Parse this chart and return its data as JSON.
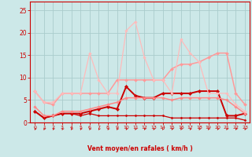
{
  "xlabel": "Vent moyen/en rafales ( km/h )",
  "background_color": "#cce8e8",
  "grid_color": "#aacccc",
  "ylim": [
    0,
    27
  ],
  "yticks": [
    0,
    5,
    10,
    15,
    20,
    25
  ],
  "xlim": [
    -0.5,
    23.5
  ],
  "xticks": [
    0,
    1,
    2,
    3,
    4,
    5,
    6,
    7,
    8,
    9,
    10,
    11,
    12,
    13,
    14,
    15,
    16,
    17,
    18,
    19,
    20,
    21,
    22,
    23
  ],
  "series": [
    {
      "x": [
        0,
        1,
        2,
        3,
        4,
        5,
        6,
        7,
        8,
        9,
        10,
        11,
        12,
        13,
        14,
        15,
        16,
        17,
        18,
        19,
        20,
        21,
        22,
        23
      ],
      "y": [
        2.5,
        1.0,
        1.5,
        2.0,
        2.0,
        1.5,
        2.0,
        1.5,
        1.5,
        1.5,
        1.5,
        1.5,
        1.5,
        1.5,
        1.5,
        1.0,
        1.0,
        1.0,
        1.0,
        1.0,
        1.0,
        1.0,
        1.0,
        0.5
      ],
      "color": "#cc0000",
      "lw": 0.9,
      "marker": "D",
      "ms": 1.5
    },
    {
      "x": [
        0,
        1,
        2,
        3,
        4,
        5,
        6,
        7,
        8,
        9,
        10,
        11,
        12,
        13,
        14,
        15,
        16,
        17,
        18,
        19,
        20,
        21,
        22,
        23
      ],
      "y": [
        2.5,
        1.0,
        1.5,
        2.0,
        2.0,
        2.0,
        2.5,
        3.0,
        3.5,
        3.0,
        8.0,
        6.0,
        5.5,
        5.5,
        6.5,
        6.5,
        6.5,
        6.5,
        7.0,
        7.0,
        7.0,
        1.5,
        1.5,
        2.0
      ],
      "color": "#cc0000",
      "lw": 1.4,
      "marker": "D",
      "ms": 2.2
    },
    {
      "x": [
        0,
        1,
        2,
        3,
        4,
        5,
        6,
        7,
        8,
        9,
        10,
        11,
        12,
        13,
        14,
        15,
        16,
        17,
        18,
        19,
        20,
        21,
        22,
        23
      ],
      "y": [
        3.5,
        1.5,
        1.5,
        2.5,
        2.5,
        2.5,
        3.0,
        3.5,
        4.0,
        4.5,
        5.5,
        5.5,
        5.5,
        5.5,
        5.5,
        5.0,
        5.5,
        5.5,
        5.5,
        5.5,
        5.5,
        5.0,
        3.5,
        2.0
      ],
      "color": "#ff8888",
      "lw": 1.1,
      "marker": "D",
      "ms": 1.8
    },
    {
      "x": [
        0,
        1,
        2,
        3,
        4,
        5,
        6,
        7,
        8,
        9,
        10,
        11,
        12,
        13,
        14,
        15,
        16,
        17,
        18,
        19,
        20,
        21,
        22,
        23
      ],
      "y": [
        7.0,
        4.5,
        4.0,
        6.5,
        6.5,
        6.5,
        6.5,
        6.5,
        6.5,
        9.5,
        9.5,
        9.5,
        9.5,
        9.5,
        9.5,
        12.0,
        13.0,
        13.0,
        13.5,
        14.5,
        15.5,
        15.5,
        6.5,
        4.0
      ],
      "color": "#ff9999",
      "lw": 1.1,
      "marker": "D",
      "ms": 2.0
    },
    {
      "x": [
        0,
        1,
        2,
        3,
        4,
        5,
        6,
        7,
        8,
        9,
        10,
        11,
        12,
        13,
        14,
        15,
        16,
        17,
        18,
        19,
        20,
        21,
        22,
        23
      ],
      "y": [
        7.0,
        4.5,
        4.5,
        6.5,
        6.5,
        6.5,
        15.5,
        9.5,
        6.5,
        6.5,
        20.5,
        22.5,
        14.5,
        9.5,
        9.5,
        6.5,
        18.5,
        15.5,
        13.5,
        6.5,
        6.5,
        6.5,
        4.0,
        2.5
      ],
      "color": "#ffbbbb",
      "lw": 0.9,
      "marker": "D",
      "ms": 1.8
    }
  ],
  "arrow_color": "#cc0000",
  "spine_color": "#cc0000",
  "tick_color": "#cc0000",
  "xlabel_color": "#cc0000"
}
